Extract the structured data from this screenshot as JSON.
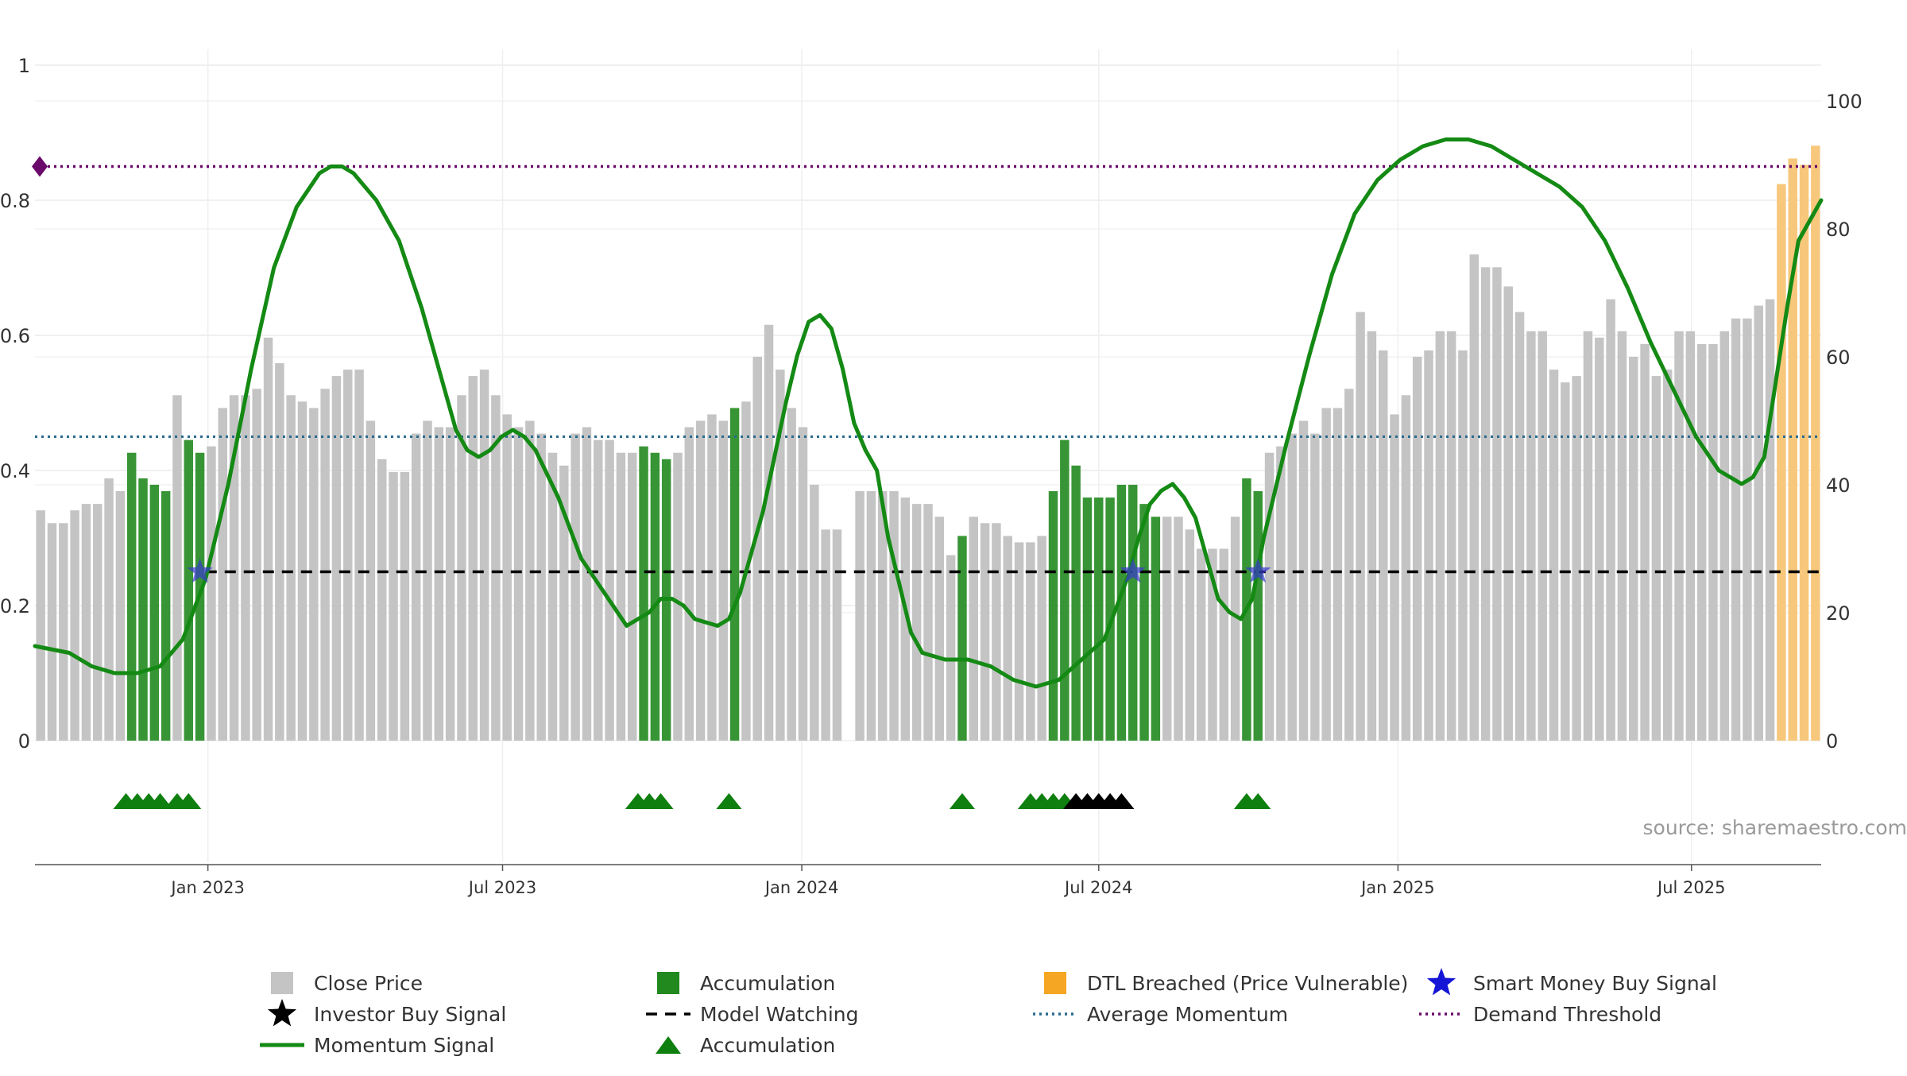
{
  "chart_data": {
    "type": "bar",
    "title": "",
    "source": "source: sharemaestro.com",
    "left_axis": {
      "range": [
        0,
        1
      ],
      "ticks": [
        0,
        0.2,
        0.4,
        0.6,
        0.8,
        1
      ],
      "tick_labels": [
        "0",
        "0.2",
        "0.4",
        "0.6",
        "0.8",
        "1"
      ]
    },
    "right_axis": {
      "range": [
        0,
        100
      ],
      "ticks": [
        0,
        20,
        40,
        60,
        80,
        100
      ],
      "tick_labels": [
        "0",
        "20",
        "40",
        "60",
        "80",
        "100"
      ]
    },
    "x_axis": {
      "range_weeks": [
        0,
        157
      ],
      "ticks": [
        {
          "week": 15.2,
          "label": "Jan 2023"
        },
        {
          "week": 41.1,
          "label": "Jul 2023"
        },
        {
          "week": 67.4,
          "label": "Jan 2024"
        },
        {
          "week": 93.5,
          "label": "Jul 2024"
        },
        {
          "week": 119.8,
          "label": "Jan 2025"
        },
        {
          "week": 145.6,
          "label": "Jul 2025"
        }
      ]
    },
    "grid": true,
    "legend_position": "bottom",
    "colors": {
      "close": "#c4c4c4",
      "accumulation": "#22891f",
      "dtl": "#f7c77b",
      "momentum": "#148a14",
      "average": "#2a6a8e",
      "demand": "#6a0a6a",
      "watching": "#000000",
      "star": "#3a3acf",
      "triangle": "#0f7f0f"
    },
    "close_price": [
      36,
      34,
      34,
      36,
      37,
      37,
      41,
      39,
      45,
      41,
      40,
      39,
      54,
      47,
      45,
      46,
      52,
      54,
      54,
      55,
      63,
      59,
      54,
      53,
      52,
      55,
      57,
      58,
      58,
      50,
      44,
      42,
      42,
      48,
      50,
      49,
      49,
      54,
      57,
      58,
      54,
      51,
      49,
      50,
      48,
      45,
      43,
      48,
      49,
      47,
      47,
      45,
      45,
      46,
      45,
      44,
      45,
      49,
      50,
      51,
      50,
      52,
      53,
      60,
      65,
      58,
      52,
      49,
      40,
      33,
      33,
      0,
      39,
      39,
      39,
      39,
      38,
      37,
      37,
      35,
      29,
      32,
      35,
      34,
      34,
      32,
      31,
      31,
      32,
      39,
      47,
      43,
      38,
      38,
      38,
      40,
      40,
      37,
      35,
      35,
      35,
      33,
      30,
      30,
      30,
      35,
      41,
      39,
      45,
      46,
      48,
      50,
      48,
      52,
      52,
      55,
      67,
      64,
      61,
      51,
      54,
      60,
      61,
      64,
      64,
      61,
      76,
      74,
      74,
      71,
      67,
      64,
      64,
      58,
      56,
      57,
      64,
      63,
      69,
      64,
      60,
      62,
      57,
      58,
      64,
      64,
      62,
      62,
      64,
      66,
      66,
      68,
      69,
      87,
      91,
      90,
      93
    ],
    "bar_category": [
      "c",
      "c",
      "c",
      "c",
      "c",
      "c",
      "c",
      "c",
      "a",
      "a",
      "a",
      "a",
      "c",
      "a",
      "a",
      "c",
      "c",
      "c",
      "c",
      "c",
      "c",
      "c",
      "c",
      "c",
      "c",
      "c",
      "c",
      "c",
      "c",
      "c",
      "c",
      "c",
      "c",
      "c",
      "c",
      "c",
      "c",
      "c",
      "c",
      "c",
      "c",
      "c",
      "c",
      "c",
      "c",
      "c",
      "c",
      "c",
      "c",
      "c",
      "c",
      "c",
      "c",
      "a",
      "a",
      "a",
      "c",
      "c",
      "c",
      "c",
      "c",
      "a",
      "c",
      "c",
      "c",
      "c",
      "c",
      "c",
      "c",
      "c",
      "c",
      "c",
      "c",
      "c",
      "c",
      "c",
      "c",
      "c",
      "c",
      "c",
      "c",
      "a",
      "c",
      "c",
      "c",
      "c",
      "c",
      "c",
      "c",
      "a",
      "a",
      "a",
      "a",
      "a",
      "a",
      "a",
      "a",
      "a",
      "a",
      "c",
      "c",
      "c",
      "c",
      "c",
      "c",
      "c",
      "a",
      "a",
      "c",
      "c",
      "c",
      "c",
      "c",
      "c",
      "c",
      "c",
      "c",
      "c",
      "c",
      "c",
      "c",
      "c",
      "c",
      "c",
      "c",
      "c",
      "c",
      "c",
      "c",
      "c",
      "c",
      "c",
      "c",
      "c",
      "c",
      "c",
      "c",
      "c",
      "c",
      "c",
      "c",
      "c",
      "c",
      "c",
      "c",
      "c",
      "c",
      "c",
      "c",
      "c",
      "c",
      "c",
      "c",
      "d",
      "d",
      "d",
      "d"
    ],
    "momentum_signal": [
      [
        0,
        0.14
      ],
      [
        3,
        0.13
      ],
      [
        5,
        0.11
      ],
      [
        7,
        0.1
      ],
      [
        9,
        0.1
      ],
      [
        11,
        0.11
      ],
      [
        13,
        0.15
      ],
      [
        15,
        0.24
      ],
      [
        17,
        0.38
      ],
      [
        19,
        0.55
      ],
      [
        21,
        0.7
      ],
      [
        23,
        0.79
      ],
      [
        25,
        0.84
      ],
      [
        26,
        0.85
      ],
      [
        27,
        0.85
      ],
      [
        28,
        0.84
      ],
      [
        30,
        0.8
      ],
      [
        32,
        0.74
      ],
      [
        34,
        0.64
      ],
      [
        36,
        0.52
      ],
      [
        37,
        0.46
      ],
      [
        38,
        0.43
      ],
      [
        39,
        0.42
      ],
      [
        40,
        0.43
      ],
      [
        41,
        0.45
      ],
      [
        42,
        0.46
      ],
      [
        43,
        0.45
      ],
      [
        44,
        0.43
      ],
      [
        46,
        0.36
      ],
      [
        48,
        0.27
      ],
      [
        50,
        0.22
      ],
      [
        52,
        0.17
      ],
      [
        54,
        0.19
      ],
      [
        55,
        0.21
      ],
      [
        56,
        0.21
      ],
      [
        57,
        0.2
      ],
      [
        58,
        0.18
      ],
      [
        60,
        0.17
      ],
      [
        61,
        0.18
      ],
      [
        62,
        0.22
      ],
      [
        64,
        0.34
      ],
      [
        66,
        0.5
      ],
      [
        67,
        0.57
      ],
      [
        68,
        0.62
      ],
      [
        69,
        0.63
      ],
      [
        70,
        0.61
      ],
      [
        71,
        0.55
      ],
      [
        72,
        0.47
      ],
      [
        73,
        0.43
      ],
      [
        74,
        0.4
      ],
      [
        75,
        0.3
      ],
      [
        76,
        0.23
      ],
      [
        77,
        0.16
      ],
      [
        78,
        0.13
      ],
      [
        80,
        0.12
      ],
      [
        82,
        0.12
      ],
      [
        84,
        0.11
      ],
      [
        86,
        0.09
      ],
      [
        88,
        0.08
      ],
      [
        90,
        0.09
      ],
      [
        92,
        0.12
      ],
      [
        94,
        0.15
      ],
      [
        96,
        0.24
      ],
      [
        97,
        0.3
      ],
      [
        98,
        0.35
      ],
      [
        99,
        0.37
      ],
      [
        100,
        0.38
      ],
      [
        101,
        0.36
      ],
      [
        102,
        0.33
      ],
      [
        103,
        0.27
      ],
      [
        104,
        0.21
      ],
      [
        105,
        0.19
      ],
      [
        106,
        0.18
      ],
      [
        107,
        0.21
      ],
      [
        108,
        0.3
      ],
      [
        110,
        0.44
      ],
      [
        112,
        0.57
      ],
      [
        114,
        0.69
      ],
      [
        116,
        0.78
      ],
      [
        118,
        0.83
      ],
      [
        120,
        0.86
      ],
      [
        122,
        0.88
      ],
      [
        124,
        0.89
      ],
      [
        126,
        0.89
      ],
      [
        128,
        0.88
      ],
      [
        130,
        0.86
      ],
      [
        132,
        0.84
      ],
      [
        134,
        0.82
      ],
      [
        136,
        0.79
      ],
      [
        138,
        0.74
      ],
      [
        140,
        0.67
      ],
      [
        142,
        0.59
      ],
      [
        144,
        0.52
      ],
      [
        146,
        0.45
      ],
      [
        148,
        0.4
      ],
      [
        149,
        0.39
      ],
      [
        150,
        0.38
      ],
      [
        151,
        0.39
      ],
      [
        152,
        0.42
      ],
      [
        153,
        0.53
      ],
      [
        154,
        0.64
      ],
      [
        155,
        0.74
      ],
      [
        156,
        0.77
      ],
      [
        157,
        0.8
      ]
    ],
    "average_momentum": 0.45,
    "demand_threshold": 0.85,
    "model_watching_level": 0.25,
    "model_watching_range": [
      15,
      157
    ],
    "smart_money_buy_signals": [
      14.5,
      96.5,
      107.5
    ],
    "accumulation_triangles": [
      8,
      9,
      10,
      11,
      12.5,
      13.5,
      53,
      54,
      55,
      61,
      81.5,
      87.5,
      88.5,
      89.5,
      90.5,
      106.5,
      107.5
    ],
    "investor_buy_triangles": [
      91.5,
      92.5,
      93.5,
      94.5,
      95.5
    ],
    "legend": [
      {
        "label": "Close Price",
        "symbol": "square-gray"
      },
      {
        "label": "Accumulation",
        "symbol": "square-green"
      },
      {
        "label": "DTL Breached (Price Vulnerable)",
        "symbol": "square-orange"
      },
      {
        "label": "Smart Money Buy Signal",
        "symbol": "star-blue"
      },
      {
        "label": "Investor Buy Signal",
        "symbol": "star-black"
      },
      {
        "label": "Model Watching",
        "symbol": "dash-black"
      },
      {
        "label": "Average Momentum",
        "symbol": "dot-blue"
      },
      {
        "label": "Demand Threshold",
        "symbol": "dot-purple"
      },
      {
        "label": "Momentum Signal",
        "symbol": "line-green"
      },
      {
        "label": "Accumulation",
        "symbol": "triangle-green"
      }
    ]
  }
}
